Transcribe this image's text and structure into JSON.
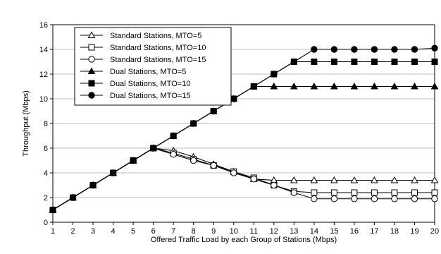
{
  "chart_data": {
    "type": "line",
    "xlabel": "Offered Traffic Load by each Group of Stations (Mbps)",
    "ylabel": "Throughput (Mbps)",
    "xlim": [
      1,
      20
    ],
    "ylim": [
      0,
      16
    ],
    "xticks": [
      1,
      2,
      3,
      4,
      5,
      6,
      7,
      8,
      9,
      10,
      11,
      12,
      13,
      14,
      15,
      16,
      17,
      18,
      19,
      20
    ],
    "yticks": [
      0,
      2,
      4,
      6,
      8,
      10,
      12,
      14,
      16
    ],
    "grid": "horizontal",
    "legend_position": "top-left",
    "x": [
      1,
      2,
      3,
      4,
      5,
      6,
      7,
      8,
      9,
      10,
      11,
      12,
      13,
      14,
      15,
      16,
      17,
      18,
      19,
      20
    ],
    "series": [
      {
        "name": "Standard Stations, MTO=5",
        "marker": "triangle-open",
        "values": [
          1,
          2,
          3,
          4,
          5,
          6,
          5.8,
          5.3,
          4.7,
          4.1,
          3.5,
          3.4,
          3.4,
          3.4,
          3.4,
          3.4,
          3.4,
          3.4,
          3.4,
          3.4
        ]
      },
      {
        "name": "Standard Stations, MTO=10",
        "marker": "square-open",
        "values": [
          1,
          2,
          3,
          4,
          5,
          6,
          5.6,
          5.1,
          4.6,
          4.1,
          3.6,
          3.0,
          2.5,
          2.4,
          2.4,
          2.4,
          2.4,
          2.4,
          2.4,
          2.4
        ]
      },
      {
        "name": "Standard Stations, MTO=15",
        "marker": "circle-open",
        "values": [
          1,
          2,
          3,
          4,
          5,
          6,
          5.5,
          5.0,
          4.6,
          4.0,
          3.5,
          3.0,
          2.4,
          1.9,
          1.9,
          1.9,
          1.9,
          1.9,
          1.9,
          1.9
        ]
      },
      {
        "name": "Dual Stations, MTO=5",
        "marker": "triangle-filled",
        "values": [
          1,
          2,
          3,
          4,
          5,
          6,
          7,
          8,
          9,
          10,
          11,
          11,
          11,
          11,
          11,
          11,
          11,
          11,
          11,
          11
        ]
      },
      {
        "name": "Dual Stations, MTO=10",
        "marker": "square-filled",
        "values": [
          1,
          2,
          3,
          4,
          5,
          6,
          7,
          8,
          9,
          10,
          11,
          12,
          13,
          13,
          13,
          13,
          13,
          13,
          13,
          13
        ]
      },
      {
        "name": "Dual Stations, MTO=15",
        "marker": "circle-filled",
        "values": [
          1,
          2,
          3,
          4,
          5,
          6,
          7,
          8,
          9,
          10,
          11,
          12,
          13,
          14,
          14,
          14,
          14,
          14,
          14,
          14.1
        ]
      }
    ]
  }
}
